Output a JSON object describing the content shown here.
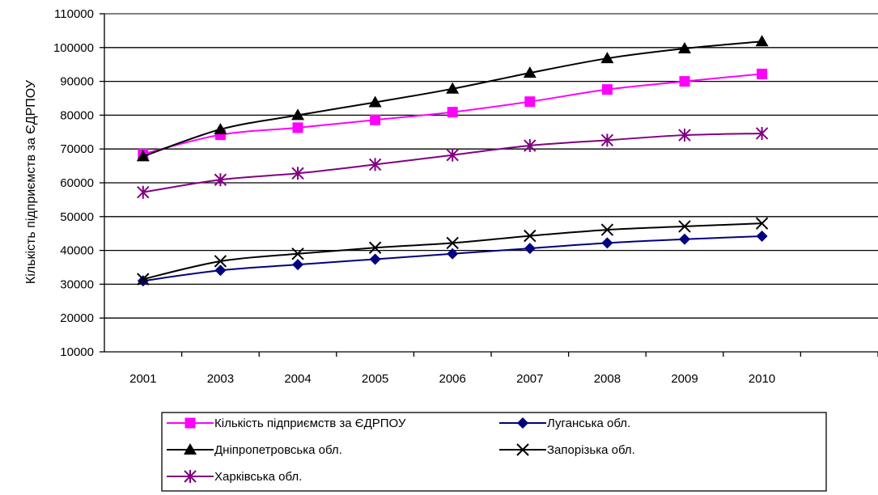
{
  "chart_data": {
    "type": "line",
    "title": "",
    "xlabel": "",
    "ylabel": "Кількість підприємств за ЄДРПОУ",
    "categories": [
      "2001",
      "2003",
      "2004",
      "2005",
      "2006",
      "2007",
      "2008",
      "2009",
      "2010"
    ],
    "ylim": [
      10000,
      110000
    ],
    "yticks": [
      10000,
      20000,
      30000,
      40000,
      50000,
      60000,
      70000,
      80000,
      90000,
      100000,
      110000
    ],
    "grid": "horizontal",
    "legend_position": "bottom",
    "series": [
      {
        "name": "Кількість підприємств за ЄДРПОУ",
        "color": "#FF00FF",
        "marker": "square",
        "values": [
          68500,
          74200,
          76300,
          78600,
          80900,
          84000,
          87600,
          90000,
          92200
        ]
      },
      {
        "name": "Луганська обл.",
        "color": "#000080",
        "marker": "diamond",
        "values": [
          31000,
          34100,
          35800,
          37400,
          39000,
          40600,
          42200,
          43300,
          44200
        ]
      },
      {
        "name": "Дніпропетровська обл.",
        "color": "#000000",
        "marker": "triangle",
        "values": [
          67800,
          75800,
          80000,
          83800,
          87800,
          92500,
          96800,
          99700,
          101800
        ]
      },
      {
        "name": "Запорізька обл.",
        "color": "#000000",
        "marker": "x",
        "values": [
          31500,
          36800,
          39000,
          40800,
          42200,
          44300,
          46100,
          47100,
          48000
        ]
      },
      {
        "name": "Харківська обл.",
        "color": "#800080",
        "marker": "star",
        "values": [
          57200,
          60900,
          62800,
          65400,
          68200,
          71000,
          72600,
          74100,
          74600
        ]
      }
    ]
  }
}
